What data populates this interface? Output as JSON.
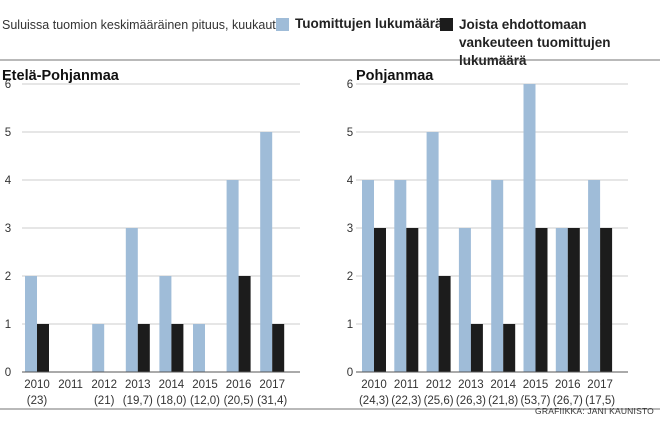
{
  "subtitle": "Suluissa tuomion keskimääräinen pituus, kuukautta",
  "legend": [
    {
      "label": "Tuomittujen lukumäärä",
      "color": "#9fbcd8"
    },
    {
      "label": "Joista ehdottomaan vankeuteen tuomittujen lukumäärä",
      "color": "#1c1c1c"
    }
  ],
  "credit": "GRAFIIKKA: JANI KAUNISTO",
  "chart_data": [
    {
      "type": "bar",
      "title": "Etelä-Pohjanmaa",
      "categories": [
        "2010",
        "2011",
        "2012",
        "2013",
        "2014",
        "2015",
        "2016",
        "2017"
      ],
      "sublabels": [
        "(23)",
        "",
        "(21)",
        "(19,7)",
        "(18,0)",
        "(12,0)",
        "(20,5)",
        "(31,4)"
      ],
      "series": [
        {
          "name": "Tuomittujen lukumäärä",
          "values": [
            2,
            0,
            1,
            3,
            2,
            1,
            4,
            5
          ]
        },
        {
          "name": "Joista ehdottomaan vankeuteen tuomittujen lukumäärä",
          "values": [
            1,
            0,
            0,
            1,
            1,
            0,
            2,
            1
          ]
        }
      ],
      "yticks": [
        "0",
        "1",
        "2",
        "3",
        "4",
        "5",
        "6"
      ],
      "ylim": [
        0,
        6
      ],
      "grid": true
    },
    {
      "type": "bar",
      "title": "Pohjanmaa",
      "categories": [
        "2010",
        "2011",
        "2012",
        "2013",
        "2014",
        "2015",
        "2016",
        "2017"
      ],
      "sublabels": [
        "(24,3)",
        "(22,3)",
        "(25,6)",
        "(26,3)",
        "(21,8)",
        "(53,7)",
        "(26,7)",
        "(17,5)"
      ],
      "series": [
        {
          "name": "Tuomittujen lukumäärä",
          "values": [
            4,
            4,
            5,
            3,
            4,
            6,
            3,
            4
          ]
        },
        {
          "name": "Joista ehdottomaan vankeuteen tuomittujen lukumäärä",
          "values": [
            3,
            3,
            2,
            1,
            1,
            3,
            3,
            3
          ]
        }
      ],
      "yticks": [
        "0",
        "1",
        "2",
        "3",
        "4",
        "5",
        "6"
      ],
      "ylim": [
        0,
        6
      ],
      "grid": true
    }
  ]
}
